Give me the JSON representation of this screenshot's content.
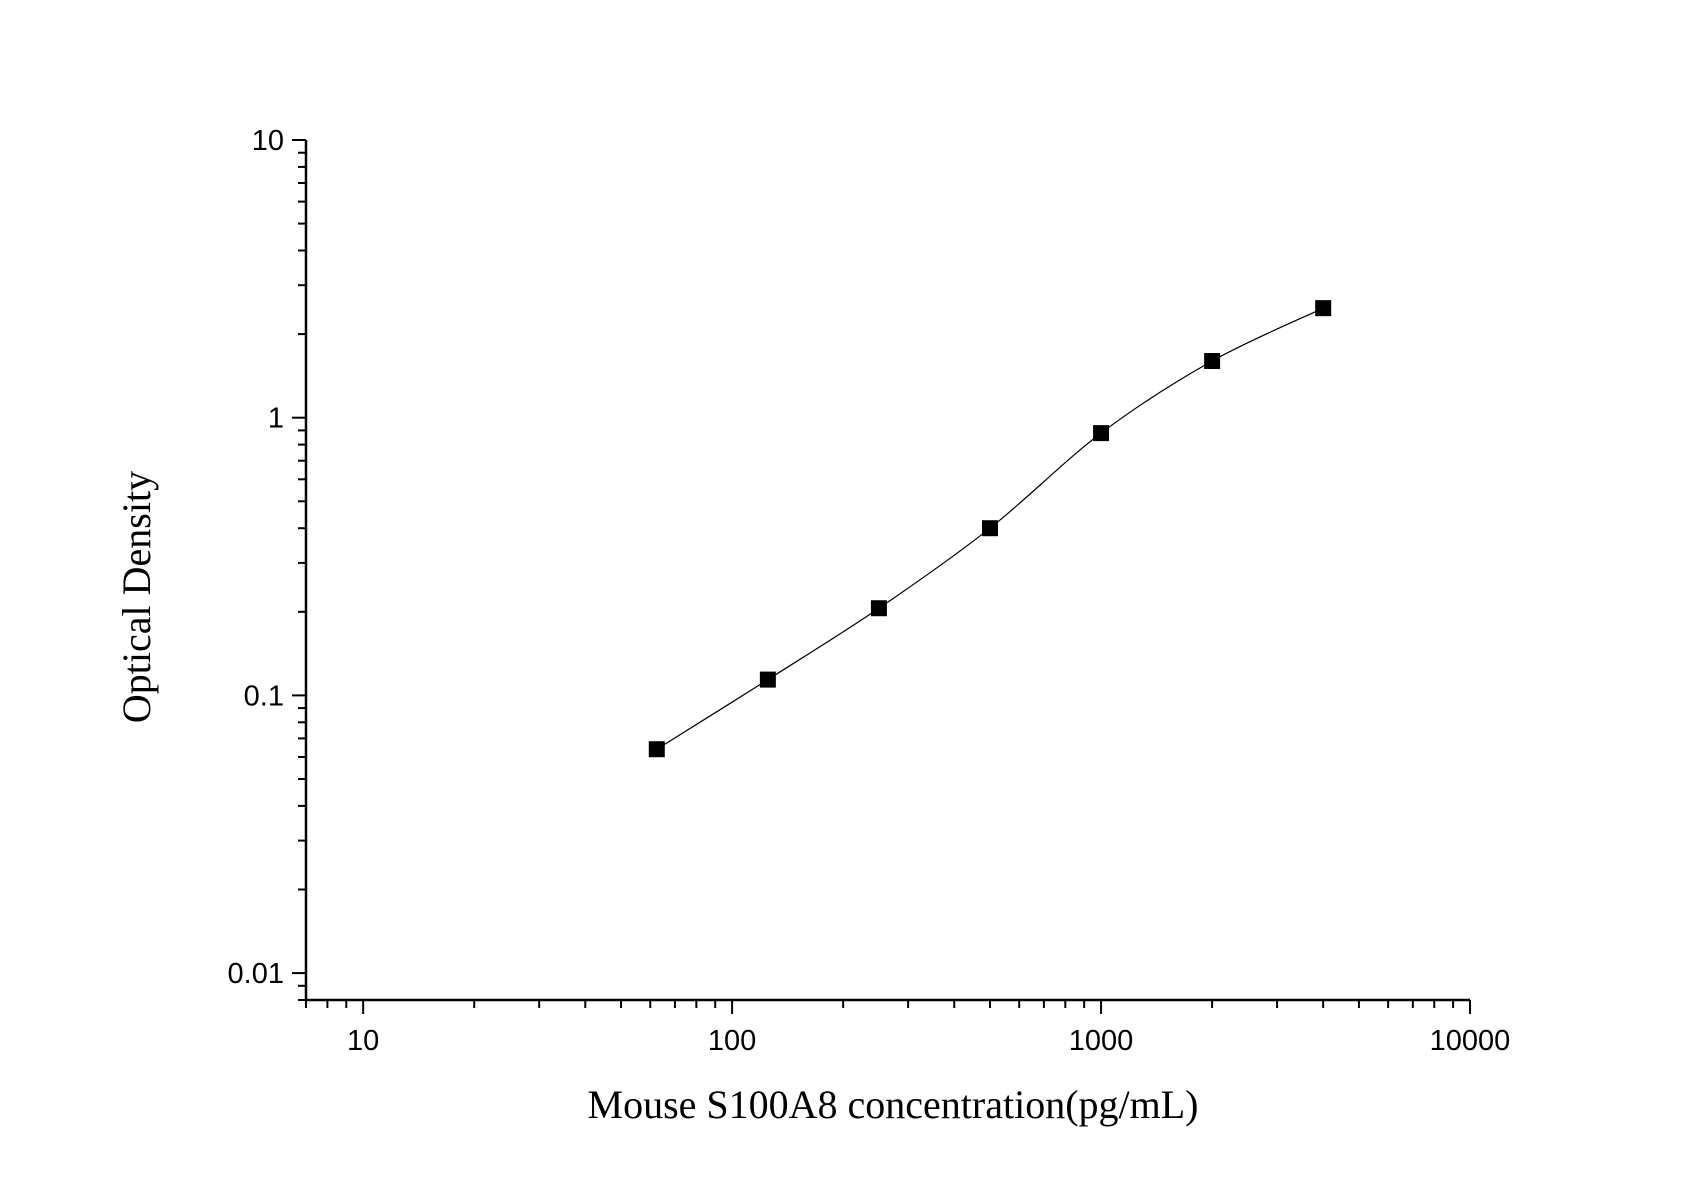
{
  "chart_data": {
    "type": "scatter",
    "xlabel": "Mouse S100A8 concentration(pg/mL)",
    "ylabel": "Optical Density",
    "xscale": "log",
    "yscale": "log",
    "xlim": [
      7,
      10000
    ],
    "ylim": [
      0.008,
      10
    ],
    "xticks": [
      10,
      100,
      1000,
      10000
    ],
    "xtick_labels": [
      "10",
      "100",
      "1000",
      "10000"
    ],
    "yticks": [
      0.01,
      0.1,
      1,
      10
    ],
    "ytick_labels": [
      "0.01",
      "0.1",
      "1",
      "10"
    ],
    "grid": false,
    "legend": "none",
    "series": [
      {
        "x": [
          62.5,
          125,
          250,
          500,
          1000,
          2000,
          4000
        ],
        "y": [
          0.064,
          0.114,
          0.206,
          0.4,
          0.88,
          1.6,
          2.48
        ],
        "marker": "square",
        "fit_line": true
      }
    ]
  }
}
